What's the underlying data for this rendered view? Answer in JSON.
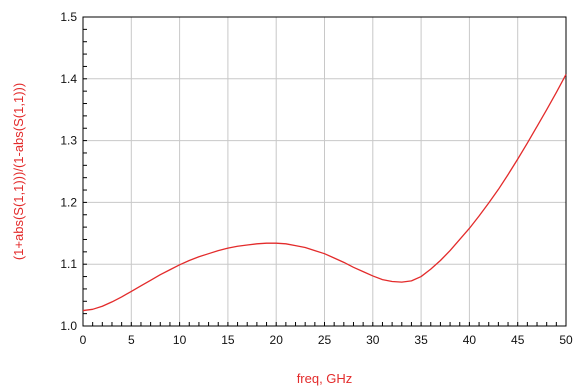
{
  "colors": {
    "series": "#e32b2b",
    "grid": "#c8c8c8",
    "axis": "#000000",
    "xlabel": "#e32b2b",
    "ylabel": "#e32b2b"
  },
  "chart_data": {
    "type": "line",
    "title": "",
    "xlabel": "freq, GHz",
    "ylabel": "(1+abs(S(1,1)))/(1-abs(S(1,1)))",
    "xlim": [
      0,
      50
    ],
    "ylim": [
      1.0,
      1.5
    ],
    "grid": true,
    "xticks": [
      0,
      5,
      10,
      15,
      20,
      25,
      30,
      35,
      40,
      45,
      50
    ],
    "yticks": [
      1.0,
      1.1,
      1.2,
      1.3,
      1.4,
      1.5
    ],
    "xtick_labels": [
      "0",
      "5",
      "10",
      "15",
      "20",
      "25",
      "30",
      "35",
      "40",
      "45",
      "50"
    ],
    "ytick_labels": [
      "1.0",
      "1.1",
      "1.2",
      "1.3",
      "1.4",
      "1.5"
    ],
    "series": [
      {
        "x": [
          0,
          1,
          2,
          3,
          4,
          5,
          6,
          7,
          8,
          9,
          10,
          11,
          12,
          13,
          14,
          15,
          16,
          17,
          18,
          19,
          20,
          21,
          22,
          23,
          24,
          25,
          26,
          27,
          28,
          29,
          30,
          31,
          32,
          33,
          34,
          35,
          36,
          37,
          38,
          39,
          40,
          41,
          42,
          43,
          44,
          45,
          46,
          47,
          48,
          49,
          50
        ],
        "y": [
          1.025,
          1.027,
          1.032,
          1.039,
          1.047,
          1.056,
          1.065,
          1.074,
          1.083,
          1.091,
          1.099,
          1.106,
          1.112,
          1.117,
          1.122,
          1.126,
          1.129,
          1.131,
          1.133,
          1.134,
          1.134,
          1.133,
          1.13,
          1.127,
          1.122,
          1.117,
          1.11,
          1.103,
          1.095,
          1.088,
          1.081,
          1.075,
          1.072,
          1.071,
          1.073,
          1.08,
          1.092,
          1.106,
          1.122,
          1.14,
          1.158,
          1.178,
          1.199,
          1.221,
          1.245,
          1.27,
          1.296,
          1.323,
          1.35,
          1.378,
          1.407
        ]
      }
    ]
  }
}
